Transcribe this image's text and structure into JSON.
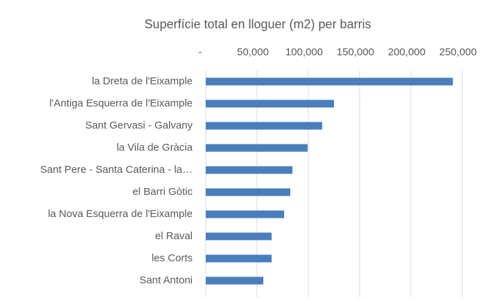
{
  "chart_data": {
    "type": "bar",
    "orientation": "horizontal",
    "title": "Superfície total en lloguer (m2) per barris",
    "categories": [
      "la Dreta de l'Eixample",
      "l'Antiga Esquerra de l'Eixample",
      "Sant Gervasi - Galvany",
      "la Vila de Gràcia",
      "Sant Pere - Santa Caterina - la…",
      "el Barri Gòtic",
      "la Nova Esquerra de l'Eixample",
      "el Raval",
      "les Corts",
      "Sant Antoni"
    ],
    "values": [
      241000,
      125000,
      113500,
      99300,
      84500,
      82400,
      76400,
      64200,
      64200,
      56100
    ],
    "color": "#4a7ebb",
    "xlim": [
      0,
      250000
    ],
    "xticks": [
      {
        "value": 0,
        "label": "-"
      },
      {
        "value": 50000,
        "label": "50,000"
      },
      {
        "value": 100000,
        "label": "100,000"
      },
      {
        "value": 150000,
        "label": "150,000"
      },
      {
        "value": 200000,
        "label": "200,000"
      },
      {
        "value": 250000,
        "label": "250,000"
      }
    ],
    "grid": true
  }
}
